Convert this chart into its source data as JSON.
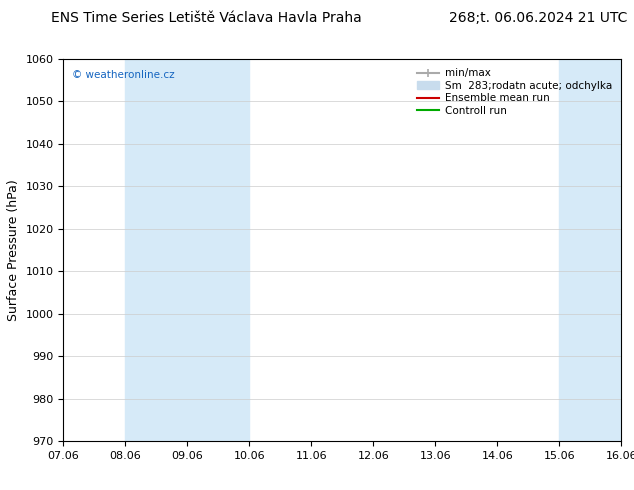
{
  "title_left": "ENS Time Series Letiště Václava Havla Praha",
  "title_right": "268;t. 06.06.2024 21 UTC",
  "ylabel": "Surface Pressure (hPa)",
  "ylim": [
    970,
    1060
  ],
  "yticks": [
    970,
    980,
    990,
    1000,
    1010,
    1020,
    1030,
    1040,
    1050,
    1060
  ],
  "xlim": [
    0,
    9
  ],
  "xtick_labels": [
    "07.06",
    "08.06",
    "09.06",
    "10.06",
    "11.06",
    "12.06",
    "13.06",
    "14.06",
    "15.06",
    "16.06"
  ],
  "xtick_positions": [
    0,
    1,
    2,
    3,
    4,
    5,
    6,
    7,
    8,
    9
  ],
  "watermark": "© weatheronline.cz",
  "watermark_color": "#1565C0",
  "bg_color": "#ffffff",
  "plot_bg_color": "#ffffff",
  "shaded_bands": [
    {
      "x_start": 1,
      "x_end": 3,
      "color": "#d6eaf8"
    },
    {
      "x_start": 8,
      "x_end": 9,
      "color": "#d6eaf8"
    }
  ],
  "legend_entries": [
    {
      "label": "min/max",
      "color": "#aaaaaa",
      "lw": 1.5,
      "style": "errorbar"
    },
    {
      "label": "Sm  283;rodatn acute; odchylka",
      "color": "#c8dced",
      "lw": 8,
      "style": "bar"
    },
    {
      "label": "Ensemble mean run",
      "color": "#cc0000",
      "lw": 1.5,
      "style": "line"
    },
    {
      "label": "Controll run",
      "color": "#00aa00",
      "lw": 1.5,
      "style": "line"
    }
  ],
  "spine_color": "#000000",
  "tick_color": "#000000",
  "grid_color": "#cccccc",
  "title_fontsize": 10,
  "axis_fontsize": 9,
  "tick_fontsize": 8,
  "legend_fontsize": 7.5
}
